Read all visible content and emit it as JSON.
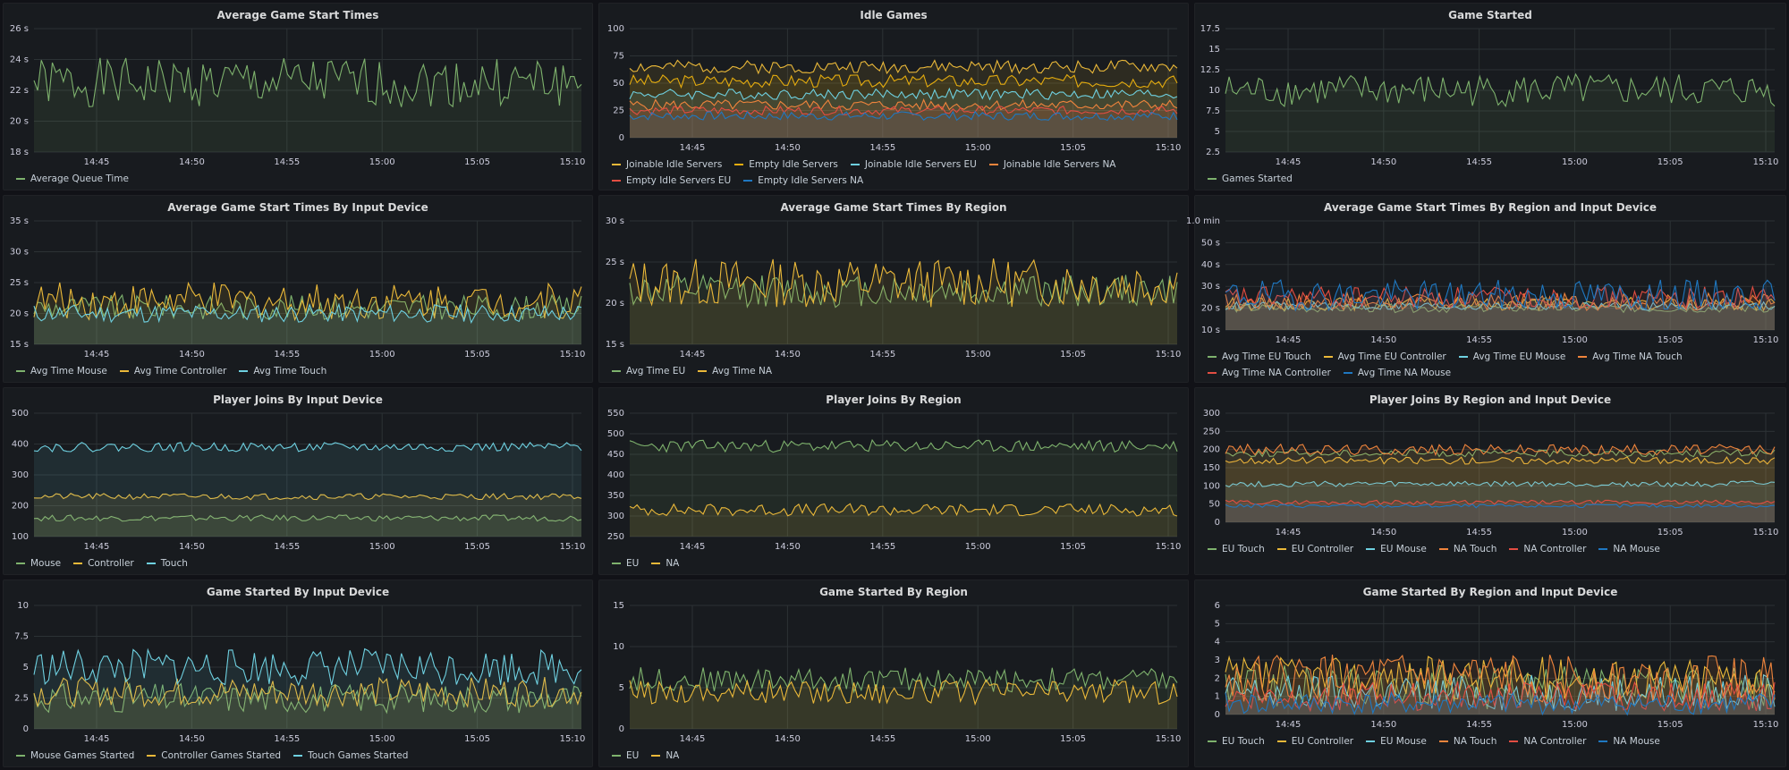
{
  "panels": [
    {
      "title": "Average Game Start Times",
      "ylabels": [
        "18 s",
        "20 s",
        "22 s",
        "24 s",
        "26 s"
      ],
      "series": [
        {
          "name": "Average Queue Time",
          "color": "#7eb26d",
          "base": 22.5,
          "amp": 1.6,
          "seed": 1,
          "fill": true
        }
      ],
      "ymin": 18,
      "ymax": 26
    },
    {
      "title": "Idle Games",
      "ylabels": [
        "0",
        "25",
        "50",
        "75",
        "100"
      ],
      "series": [
        {
          "name": "Joinable Idle Servers",
          "color": "#eab839",
          "base": 65,
          "amp": 6,
          "seed": 2,
          "fill": true
        },
        {
          "name": "Empty Idle Servers",
          "color": "#e5ac0e",
          "base": 52,
          "amp": 6,
          "seed": 3,
          "fill": true
        },
        {
          "name": "Joinable Idle Servers EU",
          "color": "#6ed0e0",
          "base": 40,
          "amp": 5,
          "seed": 4,
          "fill": true
        },
        {
          "name": "Joinable Idle Servers NA",
          "color": "#ef843c",
          "base": 30,
          "amp": 5,
          "seed": 5,
          "fill": true
        },
        {
          "name": "Empty Idle Servers EU",
          "color": "#e24d42",
          "base": 25,
          "amp": 4,
          "seed": 6,
          "fill": true
        },
        {
          "name": "Empty Idle Servers NA",
          "color": "#1f78c1",
          "base": 20,
          "amp": 4,
          "seed": 7,
          "fill": true
        }
      ],
      "ymin": 0,
      "ymax": 100
    },
    {
      "title": "Game Started",
      "ylabels": [
        "2.5",
        "5",
        "7.5",
        "10",
        "12.5",
        "15",
        "17.5"
      ],
      "series": [
        {
          "name": "Games Started",
          "color": "#7eb26d",
          "base": 10,
          "amp": 2,
          "seed": 8,
          "fill": true
        }
      ],
      "ymin": 2.5,
      "ymax": 17.5
    },
    {
      "title": "Average Game Start Times By Input Device",
      "ylabels": [
        "15 s",
        "20 s",
        "25 s",
        "30 s",
        "35 s"
      ],
      "series": [
        {
          "name": "Avg Time Mouse",
          "color": "#7eb26d",
          "base": 21,
          "amp": 2,
          "seed": 9,
          "fill": true
        },
        {
          "name": "Avg Time Controller",
          "color": "#eab839",
          "base": 22,
          "amp": 3,
          "seed": 10,
          "fill": true
        },
        {
          "name": "Avg Time Touch",
          "color": "#6ed0e0",
          "base": 20,
          "amp": 1.5,
          "seed": 11,
          "fill": true
        }
      ],
      "ymin": 15,
      "ymax": 35
    },
    {
      "title": "Average Game Start Times By Region",
      "ylabels": [
        "15 s",
        "20 s",
        "25 s",
        "30 s"
      ],
      "series": [
        {
          "name": "Avg Time EU",
          "color": "#7eb26d",
          "base": 21.5,
          "amp": 2,
          "seed": 12,
          "fill": true
        },
        {
          "name": "Avg Time NA",
          "color": "#eab839",
          "base": 22.5,
          "amp": 3,
          "seed": 13,
          "fill": true
        }
      ],
      "ymin": 15,
      "ymax": 30
    },
    {
      "title": "Average Game Start Times By Region and Input Device",
      "ylabels": [
        "10 s",
        "20 s",
        "30 s",
        "40 s",
        "50 s",
        "1.0 min"
      ],
      "series": [
        {
          "name": "Avg Time EU Touch",
          "color": "#7eb26d",
          "base": 20,
          "amp": 2,
          "seed": 14,
          "fill": true
        },
        {
          "name": "Avg Time EU Controller",
          "color": "#eab839",
          "base": 22,
          "amp": 3,
          "seed": 15,
          "fill": true
        },
        {
          "name": "Avg Time EU Mouse",
          "color": "#6ed0e0",
          "base": 21,
          "amp": 2,
          "seed": 16,
          "fill": true
        },
        {
          "name": "Avg Time NA Touch",
          "color": "#ef843c",
          "base": 23,
          "amp": 4,
          "seed": 17,
          "fill": true
        },
        {
          "name": "Avg Time NA Controller",
          "color": "#e24d42",
          "base": 25,
          "amp": 5,
          "seed": 18,
          "fill": true
        },
        {
          "name": "Avg Time NA Mouse",
          "color": "#1f78c1",
          "base": 26,
          "amp": 7,
          "seed": 19,
          "fill": true
        }
      ],
      "ymin": 10,
      "ymax": 60
    },
    {
      "title": "Player Joins By Input Device",
      "ylabels": [
        "100",
        "200",
        "300",
        "400",
        "500"
      ],
      "series": [
        {
          "name": "Mouse",
          "color": "#7eb26d",
          "base": 160,
          "amp": 10,
          "seed": 20,
          "fill": true
        },
        {
          "name": "Controller",
          "color": "#eab839",
          "base": 230,
          "amp": 10,
          "seed": 21,
          "fill": true
        },
        {
          "name": "Touch",
          "color": "#6ed0e0",
          "base": 390,
          "amp": 15,
          "seed": 22,
          "fill": true
        }
      ],
      "ymin": 100,
      "ymax": 500
    },
    {
      "title": "Player Joins By Region",
      "ylabels": [
        "250",
        "300",
        "350",
        "400",
        "450",
        "500",
        "550"
      ],
      "series": [
        {
          "name": "EU",
          "color": "#7eb26d",
          "base": 470,
          "amp": 15,
          "seed": 23,
          "fill": true
        },
        {
          "name": "NA",
          "color": "#eab839",
          "base": 315,
          "amp": 15,
          "seed": 24,
          "fill": true
        }
      ],
      "ymin": 250,
      "ymax": 550
    },
    {
      "title": "Player Joins By Region and Input Device",
      "ylabels": [
        "0",
        "50",
        "100",
        "150",
        "200",
        "250",
        "300"
      ],
      "series": [
        {
          "name": "EU Touch",
          "color": "#7eb26d",
          "base": 190,
          "amp": 10,
          "seed": 25,
          "fill": true
        },
        {
          "name": "EU Controller",
          "color": "#eab839",
          "base": 170,
          "amp": 10,
          "seed": 26,
          "fill": true
        },
        {
          "name": "EU Mouse",
          "color": "#6ed0e0",
          "base": 105,
          "amp": 8,
          "seed": 27,
          "fill": true
        },
        {
          "name": "NA Touch",
          "color": "#ef843c",
          "base": 200,
          "amp": 15,
          "seed": 28,
          "fill": true
        },
        {
          "name": "NA Controller",
          "color": "#e24d42",
          "base": 55,
          "amp": 6,
          "seed": 29,
          "fill": true
        },
        {
          "name": "NA Mouse",
          "color": "#1f78c1",
          "base": 45,
          "amp": 5,
          "seed": 30,
          "fill": true
        }
      ],
      "ymin": 0,
      "ymax": 300
    },
    {
      "title": "Game Started By Input Device",
      "ylabels": [
        "0",
        "2.5",
        "5",
        "7.5",
        "10"
      ],
      "series": [
        {
          "name": "Mouse Games Started",
          "color": "#7eb26d",
          "base": 2.5,
          "amp": 1.2,
          "seed": 31,
          "fill": true
        },
        {
          "name": "Controller Games Started",
          "color": "#eab839",
          "base": 3,
          "amp": 1.2,
          "seed": 32,
          "fill": true
        },
        {
          "name": "Touch Games Started",
          "color": "#6ed0e0",
          "base": 5,
          "amp": 1.5,
          "seed": 33,
          "fill": true
        }
      ],
      "ymin": 0,
      "ymax": 10
    },
    {
      "title": "Game Started By Region",
      "ylabels": [
        "0",
        "5",
        "10",
        "15"
      ],
      "series": [
        {
          "name": "EU",
          "color": "#7eb26d",
          "base": 6,
          "amp": 1.5,
          "seed": 34,
          "fill": true
        },
        {
          "name": "NA",
          "color": "#eab839",
          "base": 4.5,
          "amp": 1.5,
          "seed": 35,
          "fill": true
        }
      ],
      "ymin": 0,
      "ymax": 15
    },
    {
      "title": "Game Started By Region and Input Device",
      "ylabels": [
        "0",
        "1",
        "2",
        "3",
        "4",
        "5",
        "6"
      ],
      "series": [
        {
          "name": "EU Touch",
          "color": "#7eb26d",
          "base": 1.5,
          "amp": 1.2,
          "seed": 36,
          "fill": true
        },
        {
          "name": "EU Controller",
          "color": "#eab839",
          "base": 2,
          "amp": 1.2,
          "seed": 37,
          "fill": true
        },
        {
          "name": "EU Mouse",
          "color": "#6ed0e0",
          "base": 1.2,
          "amp": 1,
          "seed": 38,
          "fill": true
        },
        {
          "name": "NA Touch",
          "color": "#ef843c",
          "base": 2,
          "amp": 1.3,
          "seed": 39,
          "fill": true
        },
        {
          "name": "NA Controller",
          "color": "#e24d42",
          "base": 1,
          "amp": 0.8,
          "seed": 40,
          "fill": true
        },
        {
          "name": "NA Mouse",
          "color": "#1f78c1",
          "base": 0.6,
          "amp": 0.6,
          "seed": 41,
          "fill": true
        }
      ],
      "ymin": 0,
      "ymax": 6
    }
  ],
  "xlabels": [
    "14:45",
    "14:50",
    "14:55",
    "15:00",
    "15:05",
    "15:10"
  ],
  "chart_data": [
    {
      "type": "line",
      "title": "Average Game Start Times",
      "x": [
        "14:45",
        "14:50",
        "14:55",
        "15:00",
        "15:05",
        "15:10"
      ],
      "ylim": [
        18,
        26
      ],
      "series": [
        {
          "name": "Average Queue Time"
        }
      ]
    },
    {
      "type": "area",
      "title": "Idle Games",
      "x": [
        "14:45",
        "14:50",
        "14:55",
        "15:00",
        "15:05",
        "15:10"
      ],
      "ylim": [
        0,
        100
      ],
      "series": [
        {
          "name": "Joinable Idle Servers"
        },
        {
          "name": "Empty Idle Servers"
        },
        {
          "name": "Joinable Idle Servers EU"
        },
        {
          "name": "Joinable Idle Servers NA"
        },
        {
          "name": "Empty Idle Servers EU"
        },
        {
          "name": "Empty Idle Servers NA"
        }
      ]
    },
    {
      "type": "line",
      "title": "Game Started",
      "x": [
        "14:45",
        "14:50",
        "14:55",
        "15:00",
        "15:05",
        "15:10"
      ],
      "ylim": [
        2.5,
        17.5
      ],
      "series": [
        {
          "name": "Games Started"
        }
      ]
    },
    {
      "type": "line",
      "title": "Average Game Start Times By Input Device",
      "ylim": [
        15,
        35
      ],
      "series": [
        {
          "name": "Avg Time Mouse"
        },
        {
          "name": "Avg Time Controller"
        },
        {
          "name": "Avg Time Touch"
        }
      ]
    },
    {
      "type": "line",
      "title": "Average Game Start Times By Region",
      "ylim": [
        15,
        30
      ],
      "series": [
        {
          "name": "Avg Time EU"
        },
        {
          "name": "Avg Time NA"
        }
      ]
    },
    {
      "type": "line",
      "title": "Average Game Start Times By Region and Input Device",
      "ylim": [
        10,
        60
      ],
      "series": [
        {
          "name": "Avg Time EU Touch"
        },
        {
          "name": "Avg Time EU Controller"
        },
        {
          "name": "Avg Time EU Mouse"
        },
        {
          "name": "Avg Time NA Touch"
        },
        {
          "name": "Avg Time NA Controller"
        },
        {
          "name": "Avg Time NA Mouse"
        }
      ]
    },
    {
      "type": "line",
      "title": "Player Joins By Input Device",
      "ylim": [
        100,
        500
      ],
      "series": [
        {
          "name": "Mouse"
        },
        {
          "name": "Controller"
        },
        {
          "name": "Touch"
        }
      ]
    },
    {
      "type": "line",
      "title": "Player Joins By Region",
      "ylim": [
        250,
        550
      ],
      "series": [
        {
          "name": "EU"
        },
        {
          "name": "NA"
        }
      ]
    },
    {
      "type": "line",
      "title": "Player Joins By Region and Input Device",
      "ylim": [
        0,
        300
      ],
      "series": [
        {
          "name": "EU Touch"
        },
        {
          "name": "EU Controller"
        },
        {
          "name": "EU Mouse"
        },
        {
          "name": "NA Touch"
        },
        {
          "name": "NA Controller"
        },
        {
          "name": "NA Mouse"
        }
      ]
    },
    {
      "type": "line",
      "title": "Game Started By Input Device",
      "ylim": [
        0,
        10
      ],
      "series": [
        {
          "name": "Mouse Games Started"
        },
        {
          "name": "Controller Games Started"
        },
        {
          "name": "Touch Games Started"
        }
      ]
    },
    {
      "type": "line",
      "title": "Game Started By Region",
      "ylim": [
        0,
        15
      ],
      "series": [
        {
          "name": "EU"
        },
        {
          "name": "NA"
        }
      ]
    },
    {
      "type": "line",
      "title": "Game Started By Region and Input Device",
      "ylim": [
        0,
        6
      ],
      "series": [
        {
          "name": "EU Touch"
        },
        {
          "name": "EU Controller"
        },
        {
          "name": "EU Mouse"
        },
        {
          "name": "NA Touch"
        },
        {
          "name": "NA Controller"
        },
        {
          "name": "NA Mouse"
        }
      ]
    }
  ]
}
